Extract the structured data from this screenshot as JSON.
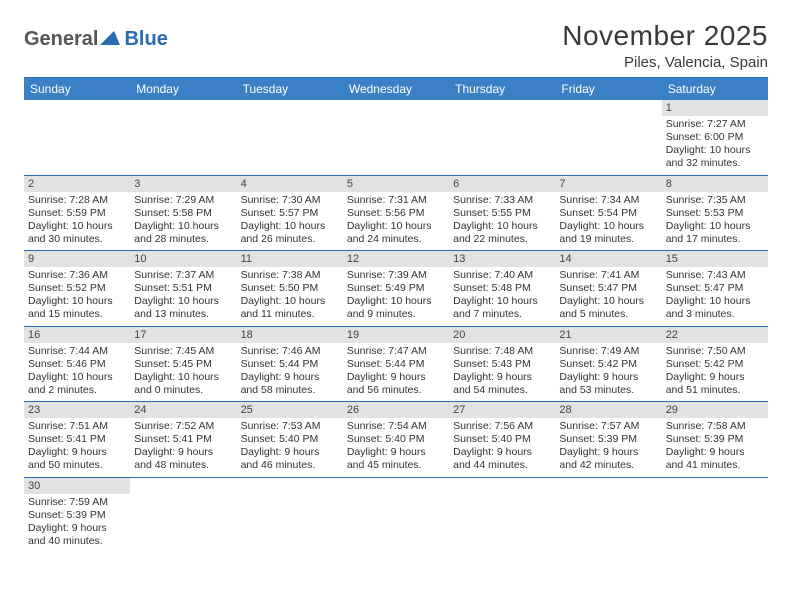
{
  "logo": {
    "text1": "General",
    "text2": "Blue"
  },
  "title": "November 2025",
  "location": "Piles, Valencia, Spain",
  "colors": {
    "header_bg": "#3b7fc4",
    "header_text": "#ffffff",
    "accent": "#2a6cb0",
    "daynum_bg": "#e2e2e2",
    "body_bg": "#ffffff",
    "text": "#333333"
  },
  "weekdays": [
    "Sunday",
    "Monday",
    "Tuesday",
    "Wednesday",
    "Thursday",
    "Friday",
    "Saturday"
  ],
  "weeks": [
    [
      null,
      null,
      null,
      null,
      null,
      null,
      {
        "n": "1",
        "sr": "Sunrise: 7:27 AM",
        "ss": "Sunset: 6:00 PM",
        "dl": "Daylight: 10 hours and 32 minutes."
      }
    ],
    [
      {
        "n": "2",
        "sr": "Sunrise: 7:28 AM",
        "ss": "Sunset: 5:59 PM",
        "dl": "Daylight: 10 hours and 30 minutes."
      },
      {
        "n": "3",
        "sr": "Sunrise: 7:29 AM",
        "ss": "Sunset: 5:58 PM",
        "dl": "Daylight: 10 hours and 28 minutes."
      },
      {
        "n": "4",
        "sr": "Sunrise: 7:30 AM",
        "ss": "Sunset: 5:57 PM",
        "dl": "Daylight: 10 hours and 26 minutes."
      },
      {
        "n": "5",
        "sr": "Sunrise: 7:31 AM",
        "ss": "Sunset: 5:56 PM",
        "dl": "Daylight: 10 hours and 24 minutes."
      },
      {
        "n": "6",
        "sr": "Sunrise: 7:33 AM",
        "ss": "Sunset: 5:55 PM",
        "dl": "Daylight: 10 hours and 22 minutes."
      },
      {
        "n": "7",
        "sr": "Sunrise: 7:34 AM",
        "ss": "Sunset: 5:54 PM",
        "dl": "Daylight: 10 hours and 19 minutes."
      },
      {
        "n": "8",
        "sr": "Sunrise: 7:35 AM",
        "ss": "Sunset: 5:53 PM",
        "dl": "Daylight: 10 hours and 17 minutes."
      }
    ],
    [
      {
        "n": "9",
        "sr": "Sunrise: 7:36 AM",
        "ss": "Sunset: 5:52 PM",
        "dl": "Daylight: 10 hours and 15 minutes."
      },
      {
        "n": "10",
        "sr": "Sunrise: 7:37 AM",
        "ss": "Sunset: 5:51 PM",
        "dl": "Daylight: 10 hours and 13 minutes."
      },
      {
        "n": "11",
        "sr": "Sunrise: 7:38 AM",
        "ss": "Sunset: 5:50 PM",
        "dl": "Daylight: 10 hours and 11 minutes."
      },
      {
        "n": "12",
        "sr": "Sunrise: 7:39 AM",
        "ss": "Sunset: 5:49 PM",
        "dl": "Daylight: 10 hours and 9 minutes."
      },
      {
        "n": "13",
        "sr": "Sunrise: 7:40 AM",
        "ss": "Sunset: 5:48 PM",
        "dl": "Daylight: 10 hours and 7 minutes."
      },
      {
        "n": "14",
        "sr": "Sunrise: 7:41 AM",
        "ss": "Sunset: 5:47 PM",
        "dl": "Daylight: 10 hours and 5 minutes."
      },
      {
        "n": "15",
        "sr": "Sunrise: 7:43 AM",
        "ss": "Sunset: 5:47 PM",
        "dl": "Daylight: 10 hours and 3 minutes."
      }
    ],
    [
      {
        "n": "16",
        "sr": "Sunrise: 7:44 AM",
        "ss": "Sunset: 5:46 PM",
        "dl": "Daylight: 10 hours and 2 minutes."
      },
      {
        "n": "17",
        "sr": "Sunrise: 7:45 AM",
        "ss": "Sunset: 5:45 PM",
        "dl": "Daylight: 10 hours and 0 minutes."
      },
      {
        "n": "18",
        "sr": "Sunrise: 7:46 AM",
        "ss": "Sunset: 5:44 PM",
        "dl": "Daylight: 9 hours and 58 minutes."
      },
      {
        "n": "19",
        "sr": "Sunrise: 7:47 AM",
        "ss": "Sunset: 5:44 PM",
        "dl": "Daylight: 9 hours and 56 minutes."
      },
      {
        "n": "20",
        "sr": "Sunrise: 7:48 AM",
        "ss": "Sunset: 5:43 PM",
        "dl": "Daylight: 9 hours and 54 minutes."
      },
      {
        "n": "21",
        "sr": "Sunrise: 7:49 AM",
        "ss": "Sunset: 5:42 PM",
        "dl": "Daylight: 9 hours and 53 minutes."
      },
      {
        "n": "22",
        "sr": "Sunrise: 7:50 AM",
        "ss": "Sunset: 5:42 PM",
        "dl": "Daylight: 9 hours and 51 minutes."
      }
    ],
    [
      {
        "n": "23",
        "sr": "Sunrise: 7:51 AM",
        "ss": "Sunset: 5:41 PM",
        "dl": "Daylight: 9 hours and 50 minutes."
      },
      {
        "n": "24",
        "sr": "Sunrise: 7:52 AM",
        "ss": "Sunset: 5:41 PM",
        "dl": "Daylight: 9 hours and 48 minutes."
      },
      {
        "n": "25",
        "sr": "Sunrise: 7:53 AM",
        "ss": "Sunset: 5:40 PM",
        "dl": "Daylight: 9 hours and 46 minutes."
      },
      {
        "n": "26",
        "sr": "Sunrise: 7:54 AM",
        "ss": "Sunset: 5:40 PM",
        "dl": "Daylight: 9 hours and 45 minutes."
      },
      {
        "n": "27",
        "sr": "Sunrise: 7:56 AM",
        "ss": "Sunset: 5:40 PM",
        "dl": "Daylight: 9 hours and 44 minutes."
      },
      {
        "n": "28",
        "sr": "Sunrise: 7:57 AM",
        "ss": "Sunset: 5:39 PM",
        "dl": "Daylight: 9 hours and 42 minutes."
      },
      {
        "n": "29",
        "sr": "Sunrise: 7:58 AM",
        "ss": "Sunset: 5:39 PM",
        "dl": "Daylight: 9 hours and 41 minutes."
      }
    ],
    [
      {
        "n": "30",
        "sr": "Sunrise: 7:59 AM",
        "ss": "Sunset: 5:39 PM",
        "dl": "Daylight: 9 hours and 40 minutes."
      },
      null,
      null,
      null,
      null,
      null,
      null
    ]
  ]
}
